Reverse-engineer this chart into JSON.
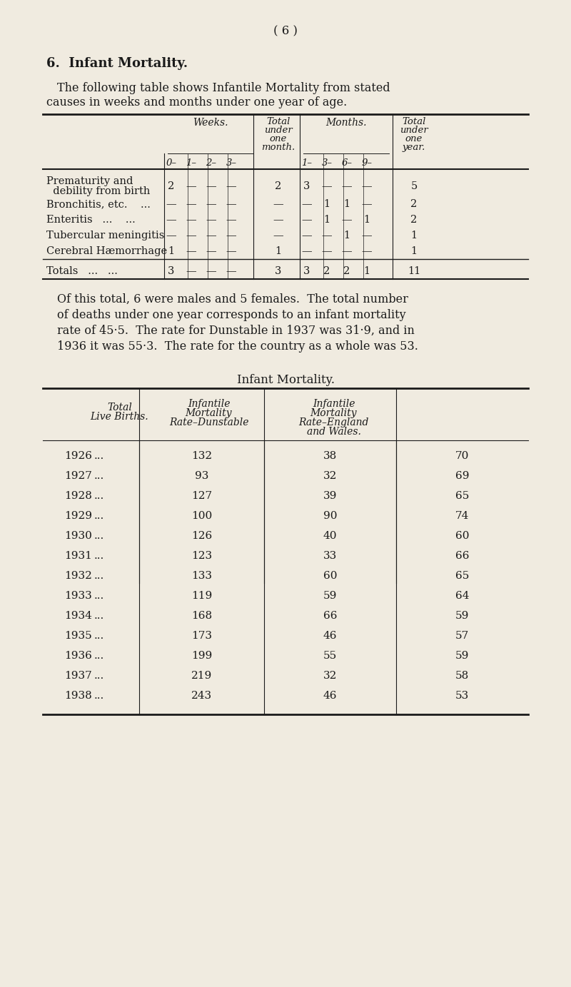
{
  "bg_color": "#f0ebe0",
  "text_color": "#1a1a1a",
  "page_number": "( 6 )",
  "section_title": "6.  Infant Mortality.",
  "intro_text": "The following table shows Infantile Mortality from stated\ncauses in weeks and months under one year of age.",
  "table1_col_headers_weeks": [
    "0–",
    "1–",
    "2–",
    "3–"
  ],
  "table1_col_header_total_month": [
    "Total",
    "under",
    "one",
    "month."
  ],
  "table1_col_headers_months": [
    "1–",
    "3–",
    "6–",
    "9–"
  ],
  "table1_col_header_total_year": [
    "Total",
    "under",
    "one",
    "year."
  ],
  "table1_group_weeks": "Weeks.",
  "table1_group_months": "Months.",
  "table1_rows": [
    {
      "cause": [
        "Prematurity and",
        "  debility from birth"
      ],
      "weeks": [
        "2",
        "—",
        "—",
        "—"
      ],
      "total_month": "2",
      "months": [
        "3",
        "—",
        "—",
        "—"
      ],
      "total_year": "5"
    },
    {
      "cause": [
        "Bronchitis, etc.",
        "   ..."
      ],
      "weeks": [
        "—",
        "—",
        "—",
        "—"
      ],
      "total_month": "—",
      "months": [
        "—",
        "1",
        "1",
        "—"
      ],
      "total_year": "2"
    },
    {
      "cause": [
        "Enteritis   ...",
        "   ..."
      ],
      "weeks": [
        "—",
        "—",
        "—",
        "—"
      ],
      "total_month": "—",
      "months": [
        "—",
        "1",
        "—",
        "1"
      ],
      "total_year": "2"
    },
    {
      "cause": [
        "Tubercular meningitis"
      ],
      "weeks": [
        "—",
        "—",
        "—",
        "—"
      ],
      "total_month": "—",
      "months": [
        "—",
        "—",
        "1",
        "—"
      ],
      "total_year": "1"
    },
    {
      "cause": [
        "Cerebral Hæmorrhage"
      ],
      "weeks": [
        "1",
        "—",
        "—",
        "—"
      ],
      "total_month": "1",
      "months": [
        "—",
        "—",
        "—",
        "—"
      ],
      "total_year": "1"
    }
  ],
  "table1_totals": {
    "label": "Totals   ...   ...",
    "weeks": [
      "3",
      "—",
      "—",
      "—"
    ],
    "total_month": "3",
    "months": [
      "3",
      "2",
      "2",
      "1"
    ],
    "total_year": "11"
  },
  "paragraph": "Of this total, 6 were males and 5 females.  The total number\nof deaths under one year corresponds to an infant mortality\nrate of 45·5.  The rate for Dunstable in 1937 was 31·9, and in\n1936 it was 55·3.  The rate for the country as a whole was 53.",
  "table2_title": "Infant Mortality.",
  "table2_col1": "Total\nLive Births.",
  "table2_col2": "Infantile\nMortality\nRate–Dunstable",
  "table2_col3": "Infantile\nMortality\nRate–England\nand Wales.",
  "table2_data": [
    [
      "1926",
      "132",
      "38",
      "70"
    ],
    [
      "1927",
      "93",
      "32",
      "69"
    ],
    [
      "1928",
      "127",
      "39",
      "65"
    ],
    [
      "1929",
      "100",
      "90",
      "74"
    ],
    [
      "1930",
      "126",
      "40",
      "60"
    ],
    [
      "1931",
      "123",
      "33",
      "66"
    ],
    [
      "1932",
      "133",
      "60",
      "65"
    ],
    [
      "1933",
      "119",
      "59",
      "64"
    ],
    [
      "1934",
      "168",
      "66",
      "59"
    ],
    [
      "1935",
      "173",
      "46",
      "57"
    ],
    [
      "1936",
      "199",
      "55",
      "59"
    ],
    [
      "1937",
      "219",
      "32",
      "58"
    ],
    [
      "1938",
      "243",
      "46",
      "53"
    ]
  ]
}
